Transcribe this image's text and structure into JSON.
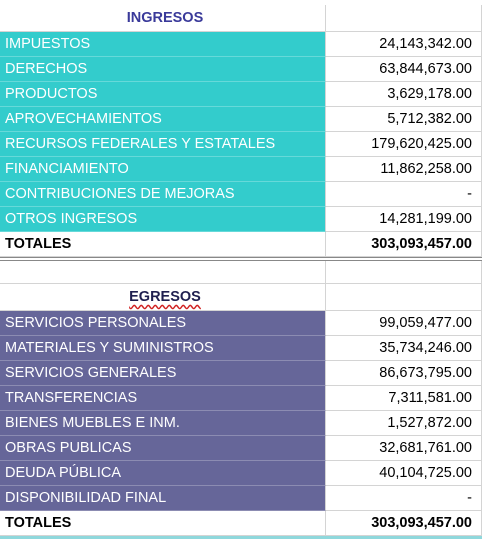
{
  "ingresos": {
    "title": "INGRESOS",
    "rows": [
      [
        "IMPUESTOS",
        "24,143,342.00"
      ],
      [
        "DERECHOS",
        "63,844,673.00"
      ],
      [
        "PRODUCTOS",
        "3,629,178.00"
      ],
      [
        "APROVECHAMIENTOS",
        "5,712,382.00"
      ],
      [
        "RECURSOS FEDERALES Y ESTATALES",
        "179,620,425.00"
      ],
      [
        "FINANCIAMIENTO",
        "11,862,258.00"
      ],
      [
        "CONTRIBUCIONES DE MEJORAS",
        "-"
      ],
      [
        "OTROS INGRESOS",
        "14,281,199.00"
      ]
    ],
    "total": [
      "TOTALES",
      "303,093,457.00"
    ]
  },
  "egresos": {
    "title": "EGRESOS",
    "rows": [
      [
        "SERVICIOS PERSONALES",
        "99,059,477.00"
      ],
      [
        "MATERIALES Y SUMINISTROS",
        "35,734,246.00"
      ],
      [
        "SERVICIOS GENERALES",
        "86,673,795.00"
      ],
      [
        "TRANSFERENCIAS",
        "7,311,581.00"
      ],
      [
        "BIENES MUEBLES E INM.",
        "1,527,872.00"
      ],
      [
        "OBRAS PUBLICAS",
        "32,681,761.00"
      ],
      [
        "DEUDA PÚBLICA",
        "40,104,725.00"
      ],
      [
        "DISPONIBILIDAD FINAL",
        "-"
      ]
    ],
    "total": [
      "TOTALES",
      "303,093,457.00"
    ]
  }
}
